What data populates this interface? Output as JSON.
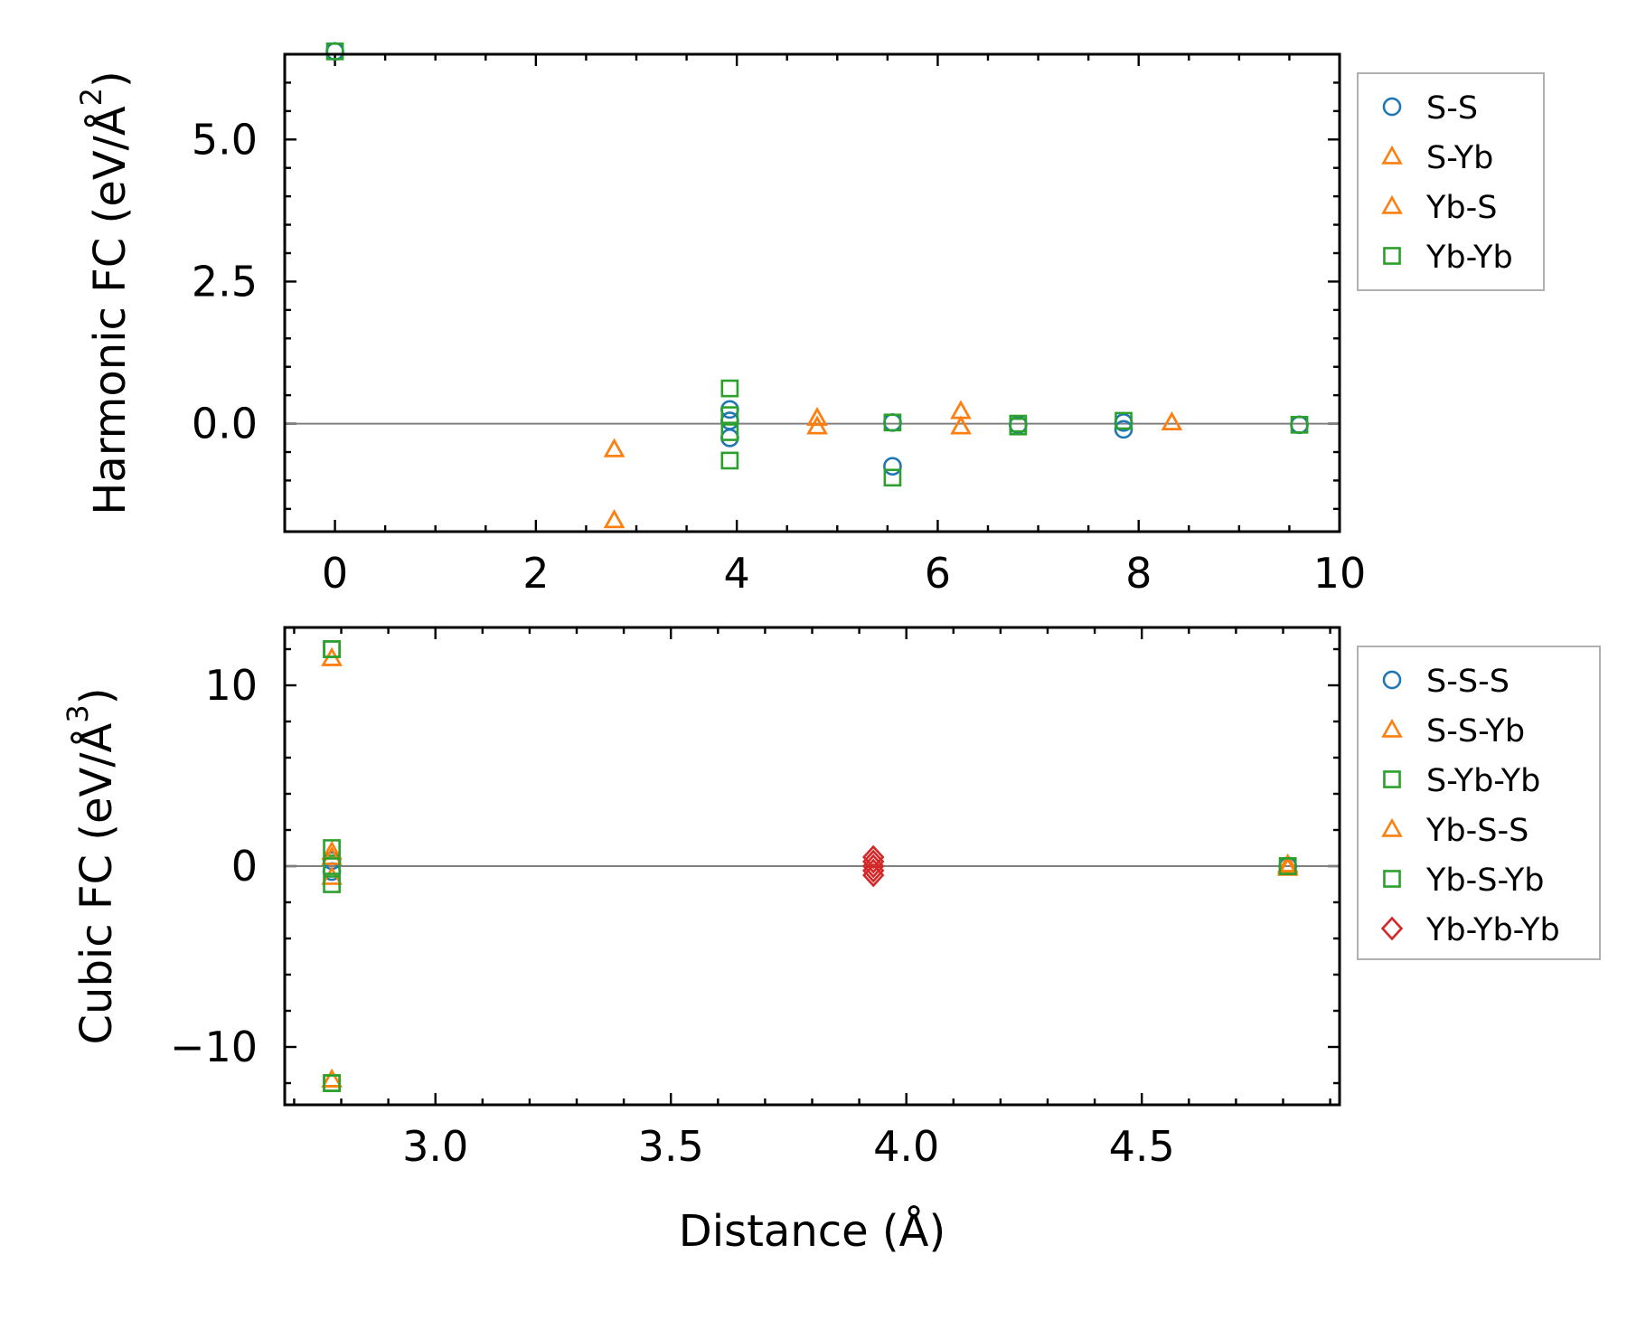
{
  "chart_data": [
    {
      "type": "scatter",
      "id": "harmonic",
      "title": "",
      "xlabel": "",
      "ylabel": "Harmonic FC (eV/Å²)",
      "ylabel_base": "Harmonic FC (eV/Å",
      "ylabel_sup": "2",
      "ylabel_close": ")",
      "xlim": [
        -0.5,
        10.0
      ],
      "ylim": [
        -1.9,
        6.5
      ],
      "xticks": [
        0,
        2,
        4,
        6,
        8,
        10
      ],
      "xtick_labels": [
        "0",
        "2",
        "4",
        "6",
        "8",
        "10"
      ],
      "yticks": [
        0.0,
        2.5,
        5.0
      ],
      "ytick_labels": [
        "0.0",
        "2.5",
        "5.0"
      ],
      "reference_line": 0,
      "legend_position": "outside-right-top",
      "series": [
        {
          "name": "S-S",
          "marker": "circle",
          "color": "#1f77b4",
          "points": [
            [
              0,
              6.55
            ],
            [
              3.93,
              0.25
            ],
            [
              3.93,
              0.05
            ],
            [
              3.93,
              -0.25
            ],
            [
              5.55,
              0.02
            ],
            [
              5.55,
              -0.75
            ],
            [
              6.8,
              -0.02
            ],
            [
              7.85,
              -0.1
            ],
            [
              7.85,
              0.02
            ],
            [
              9.6,
              -0.02
            ]
          ]
        },
        {
          "name": "S-Yb",
          "marker": "triangle",
          "color": "#ff7f0e",
          "points": [
            [
              2.78,
              -0.45
            ],
            [
              2.78,
              -1.7
            ],
            [
              4.8,
              0.1
            ],
            [
              4.8,
              -0.05
            ],
            [
              6.23,
              0.22
            ],
            [
              6.23,
              -0.05
            ],
            [
              8.33,
              0.02
            ]
          ]
        },
        {
          "name": "Yb-S",
          "marker": "triangle",
          "color": "#ff7f0e",
          "points": [
            [
              2.78,
              -0.45
            ],
            [
              2.78,
              -1.7
            ],
            [
              4.8,
              0.1
            ],
            [
              4.8,
              -0.05
            ],
            [
              6.23,
              0.22
            ],
            [
              6.23,
              -0.05
            ],
            [
              8.33,
              0.02
            ]
          ]
        },
        {
          "name": "Yb-Yb",
          "marker": "square",
          "color": "#2ca02c",
          "points": [
            [
              0,
              6.55
            ],
            [
              3.93,
              0.62
            ],
            [
              3.93,
              0.15
            ],
            [
              3.93,
              -0.15
            ],
            [
              3.93,
              -0.65
            ],
            [
              5.55,
              0.02
            ],
            [
              5.55,
              -0.95
            ],
            [
              6.8,
              0.0
            ],
            [
              6.8,
              -0.05
            ],
            [
              7.85,
              0.05
            ],
            [
              9.6,
              -0.02
            ]
          ]
        }
      ]
    },
    {
      "type": "scatter",
      "id": "cubic",
      "title": "",
      "xlabel": "Distance (Å)",
      "ylabel": "Cubic FC (eV/Å³)",
      "ylabel_base": "Cubic FC (eV/Å",
      "ylabel_sup": "3",
      "ylabel_close": ")",
      "xlim": [
        2.68,
        4.92
      ],
      "ylim": [
        -13.2,
        13.2
      ],
      "xticks": [
        3.0,
        3.5,
        4.0,
        4.5
      ],
      "xtick_labels": [
        "3.0",
        "3.5",
        "4.0",
        "4.5"
      ],
      "yticks": [
        -10,
        0,
        10
      ],
      "ytick_labels": [
        "−10",
        "0",
        "10"
      ],
      "reference_line": 0,
      "legend_position": "outside-right-top",
      "series": [
        {
          "name": "S-S-S",
          "marker": "circle",
          "color": "#1f77b4",
          "points": [
            [
              2.78,
              0.3
            ],
            [
              2.78,
              -0.3
            ],
            [
              4.81,
              0.0
            ]
          ]
        },
        {
          "name": "S-S-Yb",
          "marker": "triangle",
          "color": "#ff7f0e",
          "points": [
            [
              2.78,
              11.5
            ],
            [
              2.78,
              -11.8
            ],
            [
              2.78,
              0.8
            ],
            [
              2.78,
              -0.6
            ],
            [
              4.81,
              0.1
            ],
            [
              4.81,
              -0.1
            ]
          ]
        },
        {
          "name": "S-Yb-Yb",
          "marker": "square",
          "color": "#2ca02c",
          "points": [
            [
              2.78,
              12.0
            ],
            [
              2.78,
              -12.0
            ],
            [
              2.78,
              1.0
            ],
            [
              2.78,
              -1.0
            ],
            [
              4.81,
              0.0
            ]
          ]
        },
        {
          "name": "Yb-S-S",
          "marker": "triangle",
          "color": "#ff7f0e",
          "points": [
            [
              2.78,
              11.5
            ],
            [
              2.78,
              -11.8
            ],
            [
              2.78,
              0.5
            ],
            [
              4.81,
              0.0
            ]
          ]
        },
        {
          "name": "Yb-S-Yb",
          "marker": "square",
          "color": "#2ca02c",
          "points": [
            [
              2.78,
              12.0
            ],
            [
              2.78,
              -12.0
            ],
            [
              2.78,
              0.0
            ],
            [
              4.81,
              0.0
            ]
          ]
        },
        {
          "name": "Yb-Yb-Yb",
          "marker": "diamond",
          "color": "#d62728",
          "points": [
            [
              3.93,
              0.5
            ],
            [
              3.93,
              0.25
            ],
            [
              3.93,
              0.0
            ],
            [
              3.93,
              -0.25
            ],
            [
              3.93,
              -0.5
            ]
          ]
        }
      ]
    }
  ]
}
